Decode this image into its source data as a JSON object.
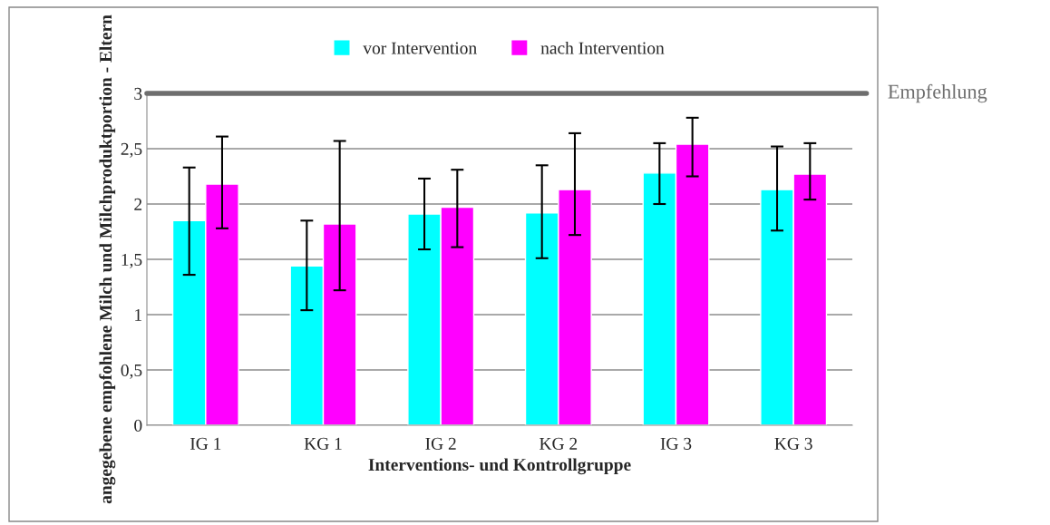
{
  "chart_data": {
    "type": "bar",
    "xlabel": "Interventions- und Kontrollgruppe",
    "ylabel": "angegebene empfohlene Milch und Milchproduktportion - Eltern",
    "categories": [
      "IG 1",
      "KG 1",
      "IG 2",
      "KG 2",
      "IG 3",
      "KG 3"
    ],
    "series": [
      {
        "name": "vor Intervention",
        "color": "#00ffff",
        "values": [
          1.85,
          1.44,
          1.91,
          1.92,
          2.28,
          2.13
        ],
        "errors": [
          [
            1.36,
            2.33
          ],
          [
            1.04,
            1.85
          ],
          [
            1.59,
            2.23
          ],
          [
            1.51,
            2.35
          ],
          [
            2.0,
            2.55
          ],
          [
            1.76,
            2.52
          ]
        ]
      },
      {
        "name": "nach Intervention",
        "color": "#ff00ff",
        "values": [
          2.18,
          1.82,
          1.97,
          2.13,
          2.54,
          2.27
        ],
        "errors": [
          [
            1.78,
            2.61
          ],
          [
            1.22,
            2.57
          ],
          [
            1.61,
            2.31
          ],
          [
            1.72,
            2.64
          ],
          [
            2.25,
            2.78
          ],
          [
            2.04,
            2.55
          ]
        ]
      }
    ],
    "ylim": [
      0,
      3
    ],
    "yticks": [
      0,
      {
        "value": 0.5,
        "label": "0,5"
      },
      1,
      {
        "value": 1.5,
        "label": "1,5"
      },
      2,
      {
        "value": 2.5,
        "label": "2,5"
      },
      3
    ],
    "ref_lines": [
      {
        "axis": "y",
        "value": 3,
        "label": "Empfehlung",
        "color": "#6e6e6e"
      }
    ],
    "grid": "y",
    "legend": "top"
  }
}
